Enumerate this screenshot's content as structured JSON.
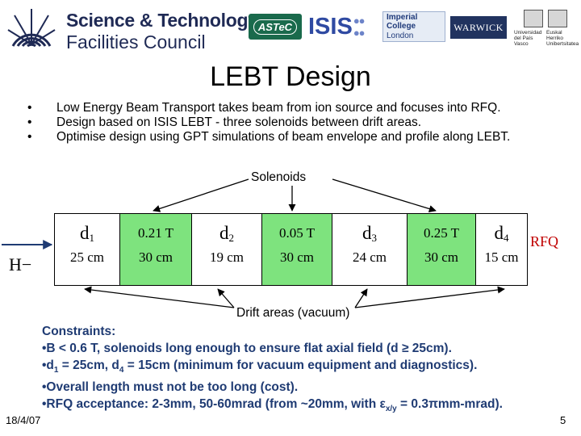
{
  "header": {
    "org_line1": "Science & Technology",
    "org_line2": "Facilities Council",
    "logo_astec": "ASTeC",
    "logo_isis": "ISIS",
    "logo_imperial_1": "Imperial College",
    "logo_imperial_2": "London",
    "logo_warwick": "WARWICK",
    "logo_ehu_left": "Universidad del País Vasco",
    "logo_ehu_right": "Euskal Herriko Unibertsitatea"
  },
  "title": "LEBT Design",
  "bullets": [
    "Low Energy Beam Transport takes beam from ion source and focuses into RFQ.",
    "Design based on ISIS LEBT -  three solenoids between drift areas.",
    "Optimise design using GPT simulations of beam envelope and profile along LEBT."
  ],
  "solenoids_label": "Solenoids",
  "beamline": {
    "input_label": "H−",
    "output_label": "RFQ",
    "segments": [
      {
        "kind": "drift",
        "name": "d",
        "sub": "1",
        "length": "25 cm"
      },
      {
        "kind": "solenoid",
        "field": "0.21 T",
        "length": "30 cm"
      },
      {
        "kind": "drift",
        "name": "d",
        "sub": "2",
        "length": "19 cm"
      },
      {
        "kind": "solenoid",
        "field": "0.05 T",
        "length": "30 cm"
      },
      {
        "kind": "drift",
        "name": "d",
        "sub": "3",
        "length": "24 cm"
      },
      {
        "kind": "solenoid",
        "field": "0.25 T",
        "length": "30 cm"
      },
      {
        "kind": "drift",
        "name": "d",
        "sub": "4",
        "length": "15 cm"
      }
    ],
    "colors": {
      "solenoid": "#7ee37e",
      "rfq": "#c00000"
    }
  },
  "drift_label": "Drift areas (vacuum)",
  "constraints": {
    "heading": "Constraints:",
    "line1": "•B < 0.6 T, solenoids long enough to ensure flat axial field (d ≥ 25cm).",
    "line2_a": "•d",
    "line2_sub1": "1",
    "line2_b": " = 25cm, d",
    "line2_sub2": "4",
    "line2_c": " = 15cm (minimum for vacuum equipment and diagnostics).",
    "line3": "•Overall length must not be too long (cost).",
    "line4_a": "•RFQ acceptance: 2-3mm, 50-60mrad (from ~20mm, with ε",
    "line4_sub": "x/y",
    "line4_b": " = 0.3πmm-mrad).",
    "color": "#1f3b73"
  },
  "footer": {
    "date": "18/4/07",
    "page": "5"
  }
}
